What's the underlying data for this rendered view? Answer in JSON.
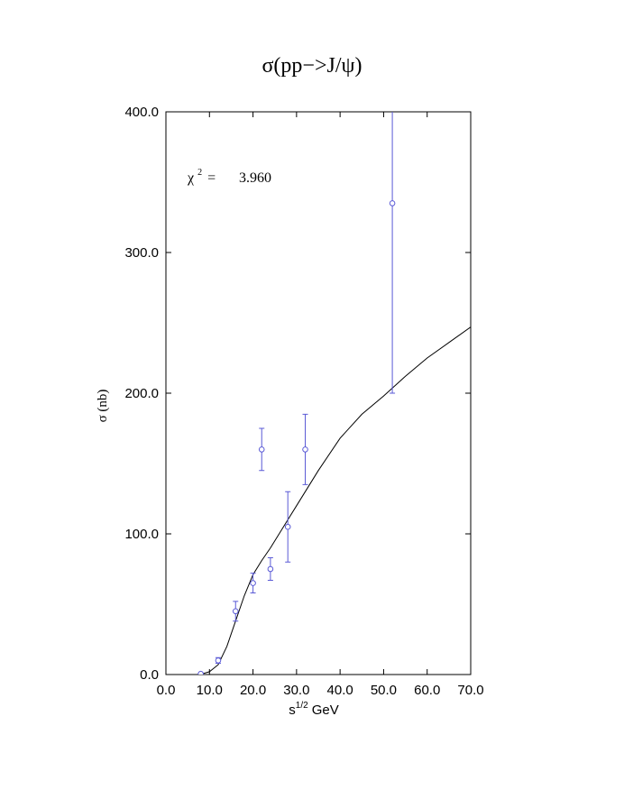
{
  "chart_data": {
    "type": "scatter",
    "title": "σ(pp−>J/ψ)",
    "xlabel": "s",
    "xlabel_sup": "1/2",
    "xlabel_rest": "GeV",
    "ylabel": "σ (nb)",
    "annotation": {
      "symbol": "χ",
      "sup": "2",
      "eq": "=",
      "value": "3.960"
    },
    "xlim": [
      0,
      70
    ],
    "ylim": [
      0,
      400
    ],
    "xticks": [
      {
        "value": 0,
        "label": "0.0"
      },
      {
        "value": 10,
        "label": "10.0"
      },
      {
        "value": 20,
        "label": "20.0"
      },
      {
        "value": 30,
        "label": "30.0"
      },
      {
        "value": 40,
        "label": "40.0"
      },
      {
        "value": 50,
        "label": "50.0"
      },
      {
        "value": 60,
        "label": "60.0"
      },
      {
        "value": 70,
        "label": "70.0"
      }
    ],
    "yticks": [
      {
        "value": 0,
        "label": "0.0"
      },
      {
        "value": 100,
        "label": "100.0"
      },
      {
        "value": 200,
        "label": "200.0"
      },
      {
        "value": 300,
        "label": "300.0"
      },
      {
        "value": 400,
        "label": "400.0"
      }
    ],
    "points": {
      "color": "#5a5ad6",
      "x": [
        8,
        12,
        16,
        20,
        22,
        24,
        28,
        32,
        52
      ],
      "values": [
        0.5,
        10,
        45,
        65,
        160,
        75,
        105,
        160,
        335
      ],
      "errors": [
        0.5,
        2,
        7,
        7,
        15,
        8,
        25,
        25,
        135
      ]
    },
    "curve": {
      "color": "#000000",
      "x": [
        7,
        8,
        10,
        12,
        14,
        16,
        18,
        20,
        22,
        24,
        26,
        28,
        30,
        35,
        40,
        45,
        50,
        55,
        60,
        65,
        70
      ],
      "values": [
        0,
        0.2,
        2,
        7,
        20,
        38,
        56,
        71,
        81,
        90,
        100,
        110,
        120,
        145,
        168,
        185,
        198,
        212,
        225,
        236,
        247
      ]
    }
  }
}
